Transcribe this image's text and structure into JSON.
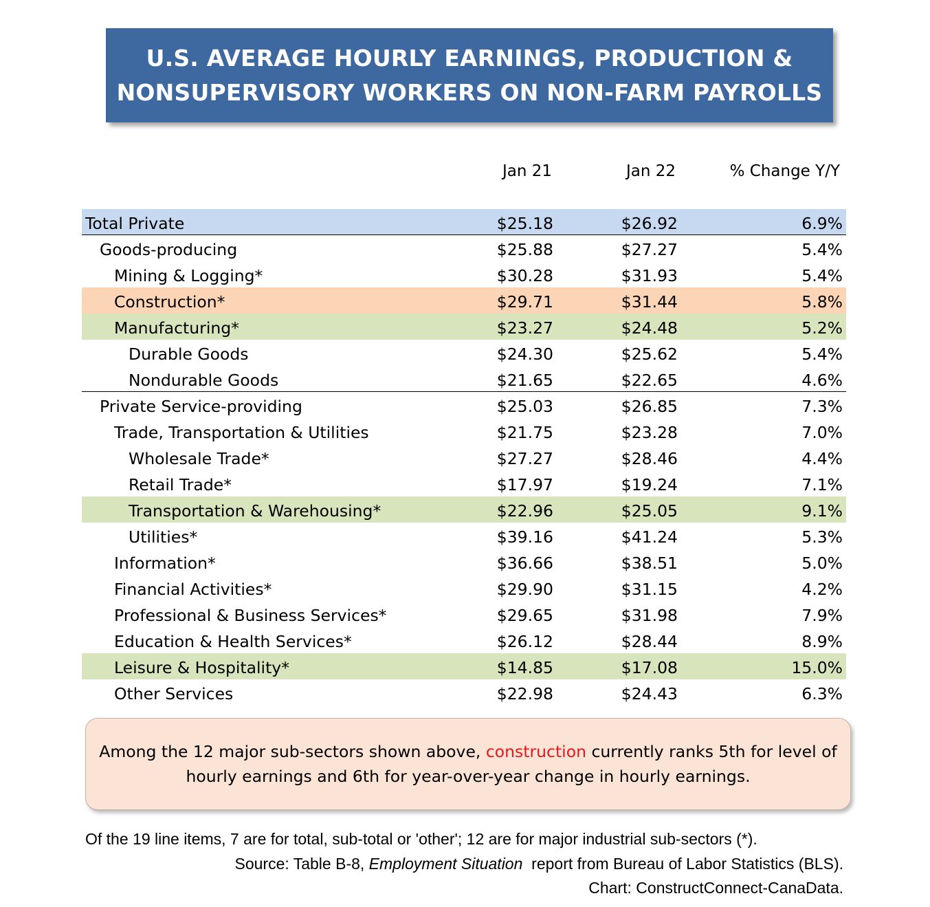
{
  "title": {
    "line1": "U.S. AVERAGE HOURLY EARNINGS, PRODUCTION &",
    "line2": "NONSUPERVISORY WORKERS ON NON-FARM PAYROLLS"
  },
  "chart_data": {
    "type": "table",
    "columns": [
      "Jan 21",
      "Jan 22",
      "% Change Y/Y"
    ],
    "rows": [
      {
        "label": "Total Private",
        "indent": 0,
        "jan21": "$25.18",
        "jan22": "$26.92",
        "change": "6.9%",
        "highlight": "#c6d9f1"
      },
      {
        "label": "Goods-producing",
        "indent": 1,
        "jan21": "$25.88",
        "jan22": "$27.27",
        "change": "5.4%",
        "highlight": ""
      },
      {
        "label": "Mining & Logging*",
        "indent": 2,
        "jan21": "$30.28",
        "jan22": "$31.93",
        "change": "5.4%",
        "highlight": ""
      },
      {
        "label": "Construction*",
        "indent": 2,
        "jan21": "$29.71",
        "jan22": "$31.44",
        "change": "5.8%",
        "highlight": "#fbd5b5"
      },
      {
        "label": "Manufacturing*",
        "indent": 2,
        "jan21": "$23.27",
        "jan22": "$24.48",
        "change": "5.2%",
        "highlight": "#d8e4bc"
      },
      {
        "label": "Durable Goods",
        "indent": 3,
        "jan21": "$24.30",
        "jan22": "$25.62",
        "change": "5.4%",
        "highlight": ""
      },
      {
        "label": "Nondurable Goods",
        "indent": 3,
        "jan21": "$21.65",
        "jan22": "$22.65",
        "change": "4.6%",
        "highlight": ""
      },
      {
        "label": "Private Service-providing",
        "indent": 1,
        "jan21": "$25.03",
        "jan22": "$26.85",
        "change": "7.3%",
        "highlight": ""
      },
      {
        "label": "Trade, Transportation & Utilities",
        "indent": 2,
        "jan21": "$21.75",
        "jan22": "$23.28",
        "change": "7.0%",
        "highlight": ""
      },
      {
        "label": "Wholesale Trade*",
        "indent": 3,
        "jan21": "$27.27",
        "jan22": "$28.46",
        "change": "4.4%",
        "highlight": ""
      },
      {
        "label": "Retail Trade*",
        "indent": 3,
        "jan21": "$17.97",
        "jan22": "$19.24",
        "change": "7.1%",
        "highlight": ""
      },
      {
        "label": "Transportation & Warehousing*",
        "indent": 3,
        "jan21": "$22.96",
        "jan22": "$25.05",
        "change": "9.1%",
        "highlight": "#d8e4bc"
      },
      {
        "label": "Utilities*",
        "indent": 3,
        "jan21": "$39.16",
        "jan22": "$41.24",
        "change": "5.3%",
        "highlight": ""
      },
      {
        "label": "Information*",
        "indent": 2,
        "jan21": "$36.66",
        "jan22": "$38.51",
        "change": "5.0%",
        "highlight": ""
      },
      {
        "label": "Financial Activities*",
        "indent": 2,
        "jan21": "$29.90",
        "jan22": "$31.15",
        "change": "4.2%",
        "highlight": ""
      },
      {
        "label": "Professional & Business Services*",
        "indent": 2,
        "jan21": "$29.65",
        "jan22": "$31.98",
        "change": "7.9%",
        "highlight": ""
      },
      {
        "label": "Education & Health Services*",
        "indent": 2,
        "jan21": "$26.12",
        "jan22": "$28.44",
        "change": "8.9%",
        "highlight": ""
      },
      {
        "label": "Leisure & Hospitality*",
        "indent": 2,
        "jan21": "$14.85",
        "jan22": "$17.08",
        "change": "15.0%",
        "highlight": "#d8e4bc"
      },
      {
        "label": "Other Services",
        "indent": 2,
        "jan21": "$22.98",
        "jan22": "$24.43",
        "change": "6.3%",
        "highlight": ""
      }
    ]
  },
  "note": {
    "line1_before": "Among the 12 major sub-sectors shown above, ",
    "line1_highlight": "construction",
    "line1_after": " currently ranks 5th for level of",
    "line2": "hourly earnings and 6th for year-over-year change in hourly earnings.",
    "highlight_color": "#e5181b"
  },
  "footer": {
    "line1": "Of the 19 line items, 7 are for total, sub-total or 'other'; 12 are for major industrial sub-sectors (*).",
    "line2_before": "Source: Table B-8, ",
    "line2_italic": "Employment Situation",
    "line2_after": "  report from Bureau of Labor Statistics (BLS).",
    "line3": "Chart: ConstructConnect-CanaData."
  }
}
